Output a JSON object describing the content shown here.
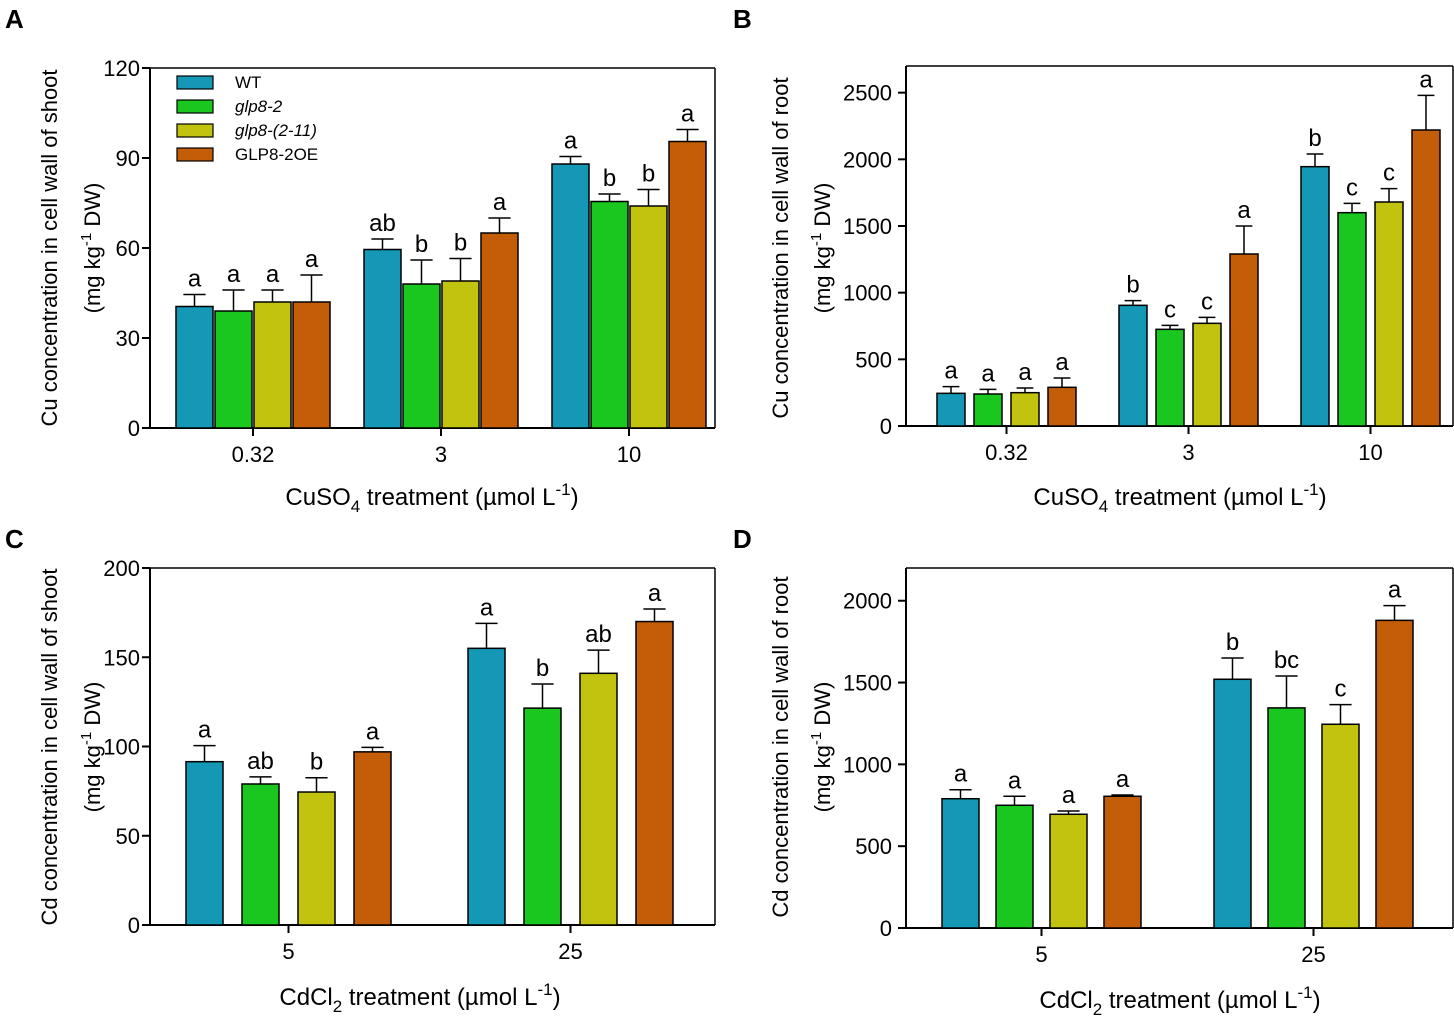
{
  "legend": [
    {
      "label": "WT",
      "italic": false
    },
    {
      "label": "glp8-2",
      "italic": true
    },
    {
      "label": "glp8-(2-11)",
      "italic": true
    },
    {
      "label": "GLP8-2OE",
      "italic": false
    }
  ],
  "colors": [
    "#1498b5",
    "#19c71e",
    "#c2c30f",
    "#c45d08"
  ],
  "chart_data": [
    {
      "type": "bar",
      "panel": "A",
      "title": "",
      "ylabel_line1": "Cu concentration in cell wall of shoot",
      "ylabel_line2": {
        "pre": "(mg kg",
        "sup": "-1",
        "post": " DW)"
      },
      "xlabel": {
        "pre": "CuSO",
        "sub": "4",
        "mid": " treatment (µmol L",
        "sup": "-1",
        "post": ")"
      },
      "categories": [
        "0.32",
        "3",
        "10"
      ],
      "ylim": [
        0,
        120
      ],
      "yticks": [
        0,
        30,
        60,
        90,
        120
      ],
      "series": [
        {
          "name": "WT",
          "values": [
            40.5,
            59.5,
            88
          ],
          "errors": [
            4,
            3.5,
            2.5
          ],
          "letters": [
            "a",
            "ab",
            "a"
          ]
        },
        {
          "name": "glp8-2",
          "values": [
            39,
            48,
            75.5
          ],
          "errors": [
            7,
            8,
            2.5
          ],
          "letters": [
            "a",
            "b",
            "b"
          ]
        },
        {
          "name": "glp8-(2-11)",
          "values": [
            42,
            49,
            74
          ],
          "errors": [
            4,
            7.5,
            5.5
          ],
          "letters": [
            "a",
            "b",
            "b"
          ]
        },
        {
          "name": "GLP8-2OE",
          "values": [
            42,
            65,
            95.5
          ],
          "errors": [
            9,
            5,
            4
          ],
          "letters": [
            "a",
            "a",
            "a"
          ]
        }
      ]
    },
    {
      "type": "bar",
      "panel": "B",
      "title": "",
      "ylabel_line1": "Cu concentration in cell wall of root",
      "ylabel_line2": {
        "pre": "(mg kg",
        "sup": "-1",
        "post": " DW)"
      },
      "xlabel": {
        "pre": "CuSO",
        "sub": "4",
        "mid": " treatment (µmol L",
        "sup": "-1",
        "post": ")"
      },
      "categories": [
        "0.32",
        "3",
        "10"
      ],
      "ylim": [
        0,
        2700
      ],
      "yticks": [
        0,
        500,
        1000,
        1500,
        2000,
        2500
      ],
      "series": [
        {
          "name": "WT",
          "values": [
            245,
            905,
            1945
          ],
          "errors": [
            50,
            35,
            95
          ],
          "letters": [
            "a",
            "b",
            "b"
          ]
        },
        {
          "name": "glp8-2",
          "values": [
            240,
            725,
            1600
          ],
          "errors": [
            35,
            30,
            70
          ],
          "letters": [
            "a",
            "c",
            "c"
          ]
        },
        {
          "name": "glp8-(2-11)",
          "values": [
            250,
            770,
            1680
          ],
          "errors": [
            35,
            45,
            100
          ],
          "letters": [
            "a",
            "c",
            "c"
          ]
        },
        {
          "name": "GLP8-2OE",
          "values": [
            290,
            1290,
            2220
          ],
          "errors": [
            70,
            210,
            260
          ],
          "letters": [
            "a",
            "a",
            "a"
          ]
        }
      ]
    },
    {
      "type": "bar",
      "panel": "C",
      "title": "",
      "ylabel_line1": "Cd concentration in cell wall of shoot",
      "ylabel_line2": {
        "pre": "(mg kg",
        "sup": "-1",
        "post": " DW)"
      },
      "xlabel": {
        "pre": "CdCl",
        "sub": "2",
        "mid": " treatment (µmol L",
        "sup": "-1",
        "post": ")"
      },
      "categories": [
        "5",
        "25"
      ],
      "ylim": [
        0,
        200
      ],
      "yticks": [
        0,
        50,
        100,
        150,
        200
      ],
      "series": [
        {
          "name": "WT",
          "values": [
            91.5,
            155
          ],
          "errors": [
            9,
            14
          ],
          "letters": [
            "a",
            "a"
          ]
        },
        {
          "name": "glp8-2",
          "values": [
            79,
            121.5
          ],
          "errors": [
            4,
            13.5
          ],
          "letters": [
            "ab",
            "b"
          ]
        },
        {
          "name": "glp8-(2-11)",
          "values": [
            74.5,
            141
          ],
          "errors": [
            8,
            13
          ],
          "letters": [
            "b",
            "ab"
          ]
        },
        {
          "name": "GLP8-2OE",
          "values": [
            97,
            170
          ],
          "errors": [
            2.5,
            7
          ],
          "letters": [
            "a",
            "a"
          ]
        }
      ]
    },
    {
      "type": "bar",
      "panel": "D",
      "title": "",
      "ylabel_line1": "Cd concentration in cell wall of root",
      "ylabel_line2": {
        "pre": "(mg kg",
        "sup": "-1",
        "post": " DW)"
      },
      "xlabel": {
        "pre": "CdCl",
        "sub": "2",
        "mid": " treatment (µmol L",
        "sup": "-1",
        "post": ")"
      },
      "categories": [
        "5",
        "25"
      ],
      "ylim": [
        0,
        2200
      ],
      "yticks": [
        0,
        500,
        1000,
        1500,
        2000
      ],
      "series": [
        {
          "name": "WT",
          "values": [
            790,
            1520
          ],
          "errors": [
            55,
            130
          ],
          "letters": [
            "a",
            "b"
          ]
        },
        {
          "name": "glp8-2",
          "values": [
            750,
            1345
          ],
          "errors": [
            55,
            195
          ],
          "letters": [
            "a",
            "bc"
          ]
        },
        {
          "name": "glp8-(2-11)",
          "values": [
            695,
            1245
          ],
          "errors": [
            20,
            120
          ],
          "letters": [
            "a",
            "c"
          ]
        },
        {
          "name": "GLP8-2OE",
          "values": [
            805,
            1880
          ],
          "errors": [
            8,
            90
          ],
          "letters": [
            "a",
            "a"
          ]
        }
      ]
    }
  ]
}
